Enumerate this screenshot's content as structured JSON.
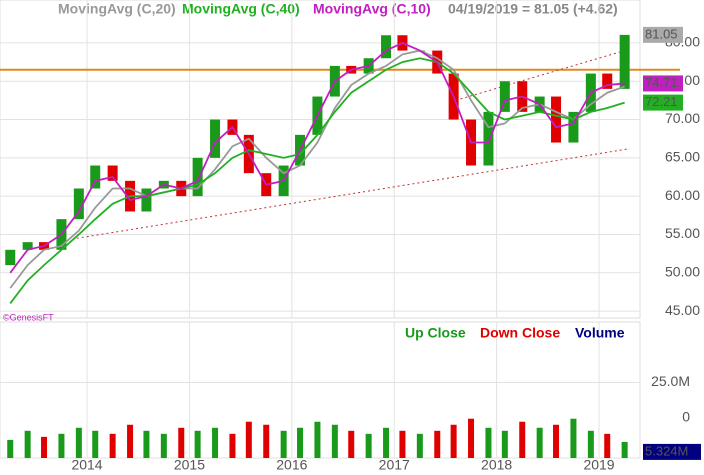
{
  "chart_data": {
    "type": "candlestick",
    "header": [
      "MovingAvg (C,20)",
      "MovingAvg (C,40)",
      "MovingAvg (C,10)",
      "04/19/2019 = 81.05 (+4.62)"
    ],
    "watermark": "©GenesisFT",
    "x": [
      2013.25,
      2013.42,
      2013.58,
      2013.75,
      2013.92,
      2014.08,
      2014.25,
      2014.42,
      2014.58,
      2014.75,
      2014.92,
      2015.08,
      2015.25,
      2015.42,
      2015.58,
      2015.75,
      2015.92,
      2016.08,
      2016.25,
      2016.42,
      2016.58,
      2016.75,
      2016.92,
      2017.08,
      2017.25,
      2017.42,
      2017.58,
      2017.75,
      2017.92,
      2018.08,
      2018.25,
      2018.42,
      2018.58,
      2018.75,
      2018.92,
      2019.08,
      2019.25
    ],
    "open": [
      51,
      53,
      54,
      53,
      57,
      61,
      64,
      62,
      58,
      61,
      62,
      60,
      65,
      70,
      68,
      63,
      60,
      64,
      68,
      73,
      77,
      76,
      78,
      81,
      79,
      79,
      76,
      70,
      64,
      71,
      75,
      71,
      73,
      67,
      71,
      76,
      74
    ],
    "close": [
      53,
      54,
      53,
      57,
      61,
      64,
      62,
      58,
      61,
      62,
      60,
      65,
      70,
      68,
      63,
      60,
      64,
      68,
      73,
      77,
      76,
      78,
      81,
      79,
      79,
      76,
      70,
      64,
      71,
      75,
      71,
      73,
      67,
      71,
      76,
      74,
      81.05
    ],
    "up_color": "#1a9a1a",
    "down_color": "#e00000",
    "series": [
      {
        "name": "MovingAvg (C,20)",
        "color": "#999999",
        "values": [
          48,
          51,
          53,
          53.5,
          55.5,
          58.5,
          61,
          61,
          60,
          60.5,
          61,
          61,
          63.5,
          66.5,
          67.5,
          65,
          63,
          64,
          67,
          71.5,
          74.5,
          76,
          77,
          78.5,
          79,
          78,
          76.5,
          72.5,
          69,
          69.5,
          71.5,
          72,
          71,
          70,
          72,
          73.5,
          74.3
        ]
      },
      {
        "name": "MovingAvg (C,40)",
        "color": "#22b022",
        "values": [
          46,
          49,
          51,
          53,
          55,
          57,
          59,
          60,
          60,
          60.5,
          61,
          61.5,
          63,
          65,
          66,
          65.5,
          65,
          65.5,
          68,
          71,
          73.5,
          75,
          76.5,
          77.5,
          78,
          77.5,
          76,
          73.5,
          71,
          70,
          70.5,
          71,
          70.5,
          70,
          71,
          71.5,
          72.21
        ]
      },
      {
        "name": "MovingAvg (C,10)",
        "color": "#c020c0",
        "values": [
          50,
          53,
          53.5,
          55,
          58,
          62,
          62.5,
          59.5,
          60,
          61.5,
          61,
          62,
          67,
          69,
          65.5,
          61.5,
          62,
          66,
          70.5,
          75,
          76.5,
          77,
          79,
          80,
          79,
          77.5,
          73,
          67,
          67,
          72.5,
          73,
          72,
          69,
          69.5,
          73.5,
          74.5,
          74.71
        ]
      }
    ],
    "hline": {
      "value": 76.5,
      "color": "#e08a1e"
    },
    "trend_lines": [
      {
        "color": "#c03030",
        "x": [
          2013.9,
          2019.3
        ],
        "y": [
          54.5,
          66.2
        ]
      },
      {
        "color": "#c03030",
        "x": [
          2017.6,
          2019.2
        ],
        "y": [
          72.5,
          78.8
        ]
      }
    ],
    "xlim": [
      2013.15,
      2019.4
    ],
    "xticks": [
      2014,
      2015,
      2016,
      2017,
      2018,
      2019
    ],
    "ylim": [
      44.1,
      85.6
    ],
    "yticks": [
      {
        "value": 45,
        "label": "45.00"
      },
      {
        "value": 50,
        "label": "50.00"
      },
      {
        "value": 55,
        "label": "55.00"
      },
      {
        "value": 60,
        "label": "60.00"
      },
      {
        "value": 65,
        "label": "65.00"
      },
      {
        "value": 70,
        "label": "70.00"
      },
      {
        "value": 75,
        "label": "75.00"
      },
      {
        "value": 80,
        "label": "80.00"
      }
    ],
    "volume": {
      "legend": [
        "Up Close",
        "Down Close",
        "Volume"
      ],
      "legend_colors": [
        "#1a9a1a",
        "#e00000",
        "#000080"
      ],
      "values": [
        6,
        9,
        7,
        8,
        10,
        9,
        8,
        11,
        9,
        8,
        10,
        9,
        10,
        8,
        12,
        11,
        9,
        10,
        12,
        11,
        9,
        8,
        10,
        9,
        8,
        9,
        11,
        13,
        10,
        9,
        12,
        10,
        11,
        13,
        9,
        8,
        5.324
      ],
      "value_labels": {
        "36": "5.324M"
      },
      "ylim": [
        0,
        45
      ],
      "yticks": [
        0,
        {
          "value": 25,
          "label": "25.0M"
        }
      ]
    },
    "grid": true
  }
}
